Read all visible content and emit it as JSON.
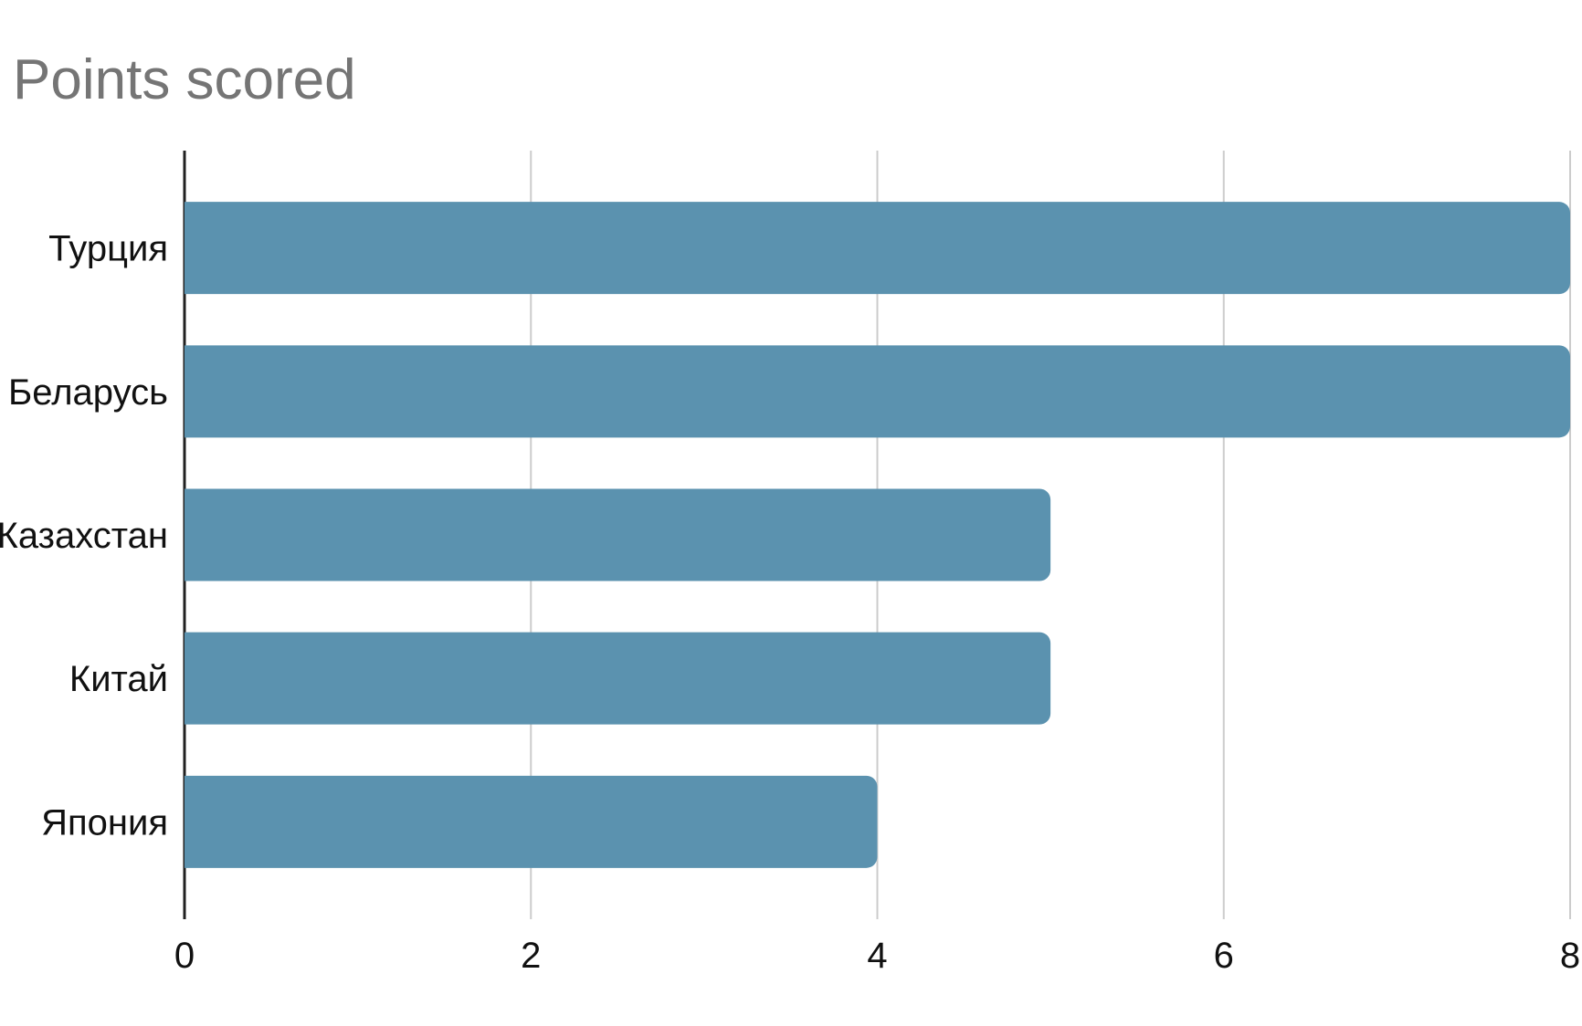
{
  "chart_data": {
    "type": "bar",
    "orientation": "horizontal",
    "title": "Points scored",
    "categories": [
      "Турция",
      "Беларусь",
      "Казахстан",
      "Китай",
      "Япония"
    ],
    "values": [
      8,
      8,
      5,
      5,
      4
    ],
    "series": [
      {
        "name": "Points scored",
        "values": [
          8,
          8,
          5,
          5,
          4
        ]
      }
    ],
    "xlabel": "",
    "ylabel": "",
    "xlim": [
      0,
      8
    ],
    "x_ticks": [
      "0",
      "2",
      "4",
      "6",
      "8"
    ],
    "grid": true,
    "legend": "none",
    "colors": {
      "bar": "#5b92af",
      "title_text": "#757575",
      "axis_line": "#212121",
      "gridline": "#cccccc",
      "label_text": "#111111",
      "background": "#ffffff"
    }
  }
}
